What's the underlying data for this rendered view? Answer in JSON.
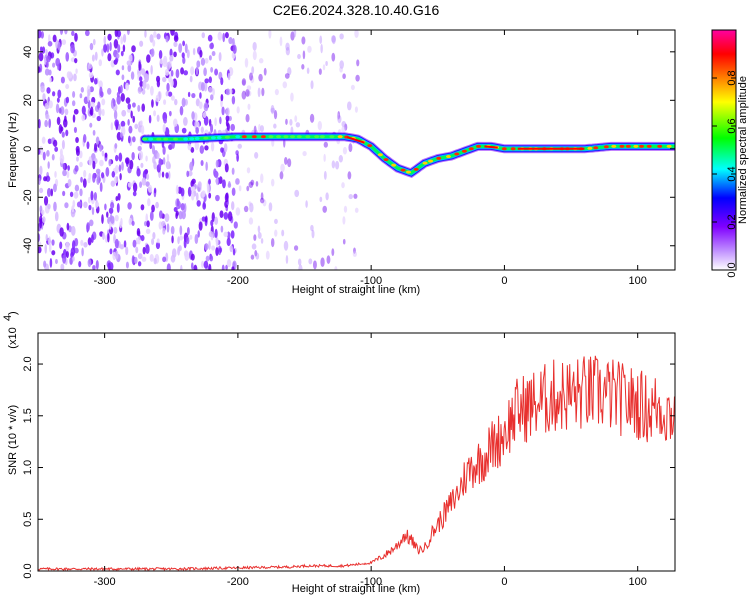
{
  "title": "C2E6.2024.328.10.40.G16",
  "colors": {
    "series": "#e8302e",
    "frame": "#000000"
  },
  "chart_data": [
    {
      "type": "heatmap",
      "title": "C2E6.2024.328.10.40.G16",
      "xlabel": "Height of straight line (km)",
      "ylabel": "Frequency (Hz)",
      "xlim": [
        -350,
        128
      ],
      "ylim": [
        -50,
        49
      ],
      "xticks": [
        "-300",
        "-200",
        "-100",
        "0",
        "100"
      ],
      "yticks": [
        "-40",
        "-20",
        "0",
        "20",
        "40"
      ],
      "colorbar": {
        "label": "Normalized spectral amplitude",
        "ticks": [
          "0.0",
          "0.2",
          "0.4",
          "0.6",
          "0.8"
        ],
        "range": [
          0,
          1
        ],
        "colormap": [
          "#ffffff",
          "#8000ff",
          "#0000ff",
          "#00ffff",
          "#00ff00",
          "#ffff00",
          "#ff8000",
          "#ff0000",
          "#ff00a0"
        ]
      },
      "ridge": {
        "x": [
          -270,
          -240,
          -200,
          -170,
          -140,
          -120,
          -110,
          -100,
          -90,
          -80,
          -70,
          -60,
          -50,
          -40,
          -30,
          -20,
          -10,
          0,
          20,
          40,
          60,
          80,
          100,
          128
        ],
        "frequency": [
          4,
          4,
          5,
          5,
          5,
          5,
          4,
          1,
          -4,
          -8,
          -10,
          -6,
          -4,
          -3,
          -1,
          1,
          1,
          0,
          0,
          0,
          0,
          1,
          1,
          1
        ]
      },
      "noise_region_x": [
        -350,
        -200
      ]
    },
    {
      "type": "line",
      "xlabel": "Height of straight line (km)",
      "ylabel": "SNR (10 * v/v)",
      "scale_label": "(x10",
      "scale_exp": "4",
      "xlim": [
        -350,
        128
      ],
      "ylim": [
        0,
        2.3
      ],
      "xticks": [
        "-300",
        "-200",
        "-100",
        "0",
        "100"
      ],
      "yticks": [
        "0.0",
        "0.5",
        "1.0",
        "1.5",
        "2.0"
      ],
      "series": [
        {
          "color": "#e8302e",
          "x": [
            -350,
            -300,
            -250,
            -200,
            -160,
            -150,
            -120,
            -100,
            -90,
            -80,
            -75,
            -70,
            -65,
            -60,
            -55,
            -50,
            -45,
            -40,
            -35,
            -30,
            -25,
            -20,
            -15,
            -10,
            -5,
            0,
            5,
            10,
            20,
            30,
            40,
            50,
            60,
            70,
            80,
            90,
            100,
            110,
            115,
            120,
            128
          ],
          "y": [
            0.02,
            0.02,
            0.02,
            0.03,
            0.04,
            0.05,
            0.05,
            0.08,
            0.15,
            0.25,
            0.35,
            0.3,
            0.2,
            0.22,
            0.35,
            0.45,
            0.55,
            0.65,
            0.75,
            0.9,
            1.0,
            1.05,
            1.1,
            1.2,
            1.25,
            1.35,
            1.45,
            1.55,
            1.6,
            1.65,
            1.7,
            1.7,
            1.72,
            1.72,
            1.7,
            1.65,
            1.62,
            1.55,
            1.6,
            1.55,
            1.5
          ]
        }
      ]
    }
  ]
}
